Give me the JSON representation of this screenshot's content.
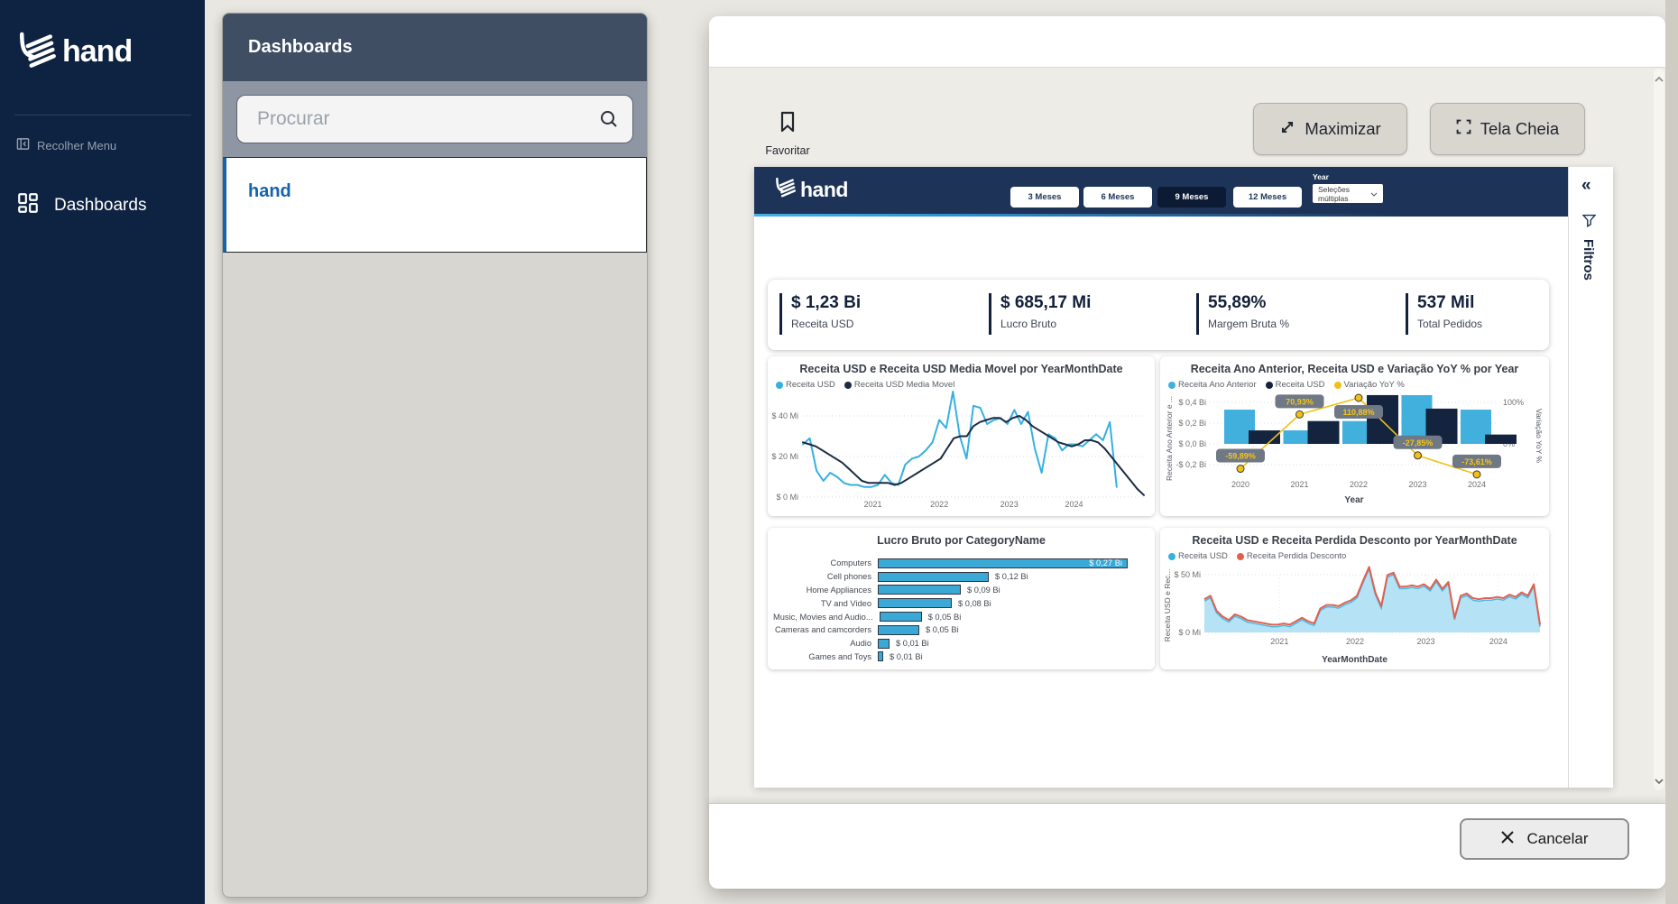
{
  "colors": {
    "sidebar_bg": "#0e2341",
    "panel_header": "#3f4e63",
    "search_zone": "#8d96a2",
    "accent_blue": "#1363ad",
    "report_navy": "#1d3458",
    "selected_period_bg": "#0c1a33",
    "kpi_navy": "#13203a",
    "series_light_blue": "#36b0e0",
    "series_dark": "#1b2a41",
    "series_cyan_bar": "#41b0dc",
    "series_yellow": "#f0c018",
    "series_red": "#e0604e",
    "hbar_blue": "#3aa9d6",
    "pill_gray": "#6f7885"
  },
  "sidebar": {
    "logo_text": "hand",
    "collapse_label": "Recolher Menu",
    "menu": [
      {
        "label": "Dashboards"
      }
    ]
  },
  "panel": {
    "title": "Dashboards",
    "search_placeholder": "Procurar",
    "items": [
      {
        "label": "hand"
      }
    ]
  },
  "toolbar": {
    "favorite_label": "Favoritar",
    "maximize_label": "Maximizar",
    "fullscreen_label": "Tela Cheia"
  },
  "footer": {
    "cancel_label": "Cancelar"
  },
  "report": {
    "logo_text": "hand",
    "period_buttons": [
      {
        "label": "3 Meses",
        "selected": false
      },
      {
        "label": "6 Meses",
        "selected": false
      },
      {
        "label": "9 Meses",
        "selected": true
      },
      {
        "label": "12 Meses",
        "selected": false
      }
    ],
    "year_filter": {
      "label": "Year",
      "value": "Seleções múltiplas"
    },
    "filters_pane": {
      "label": "Filtros",
      "collapse_glyph": "«"
    },
    "kpis": [
      {
        "value": "$ 1,23 Bi",
        "label": "Receita USD"
      },
      {
        "value": "$ 685,17 Mi",
        "label": "Lucro Bruto"
      },
      {
        "value": "55,89%",
        "label": "Margem Bruta %"
      },
      {
        "value": "537 Mil",
        "label": "Total Pedidos"
      }
    ]
  },
  "chart_data": [
    {
      "type": "line",
      "title": "Receita USD e Receita USD Media Movel por YearMonthDate",
      "legend": [
        {
          "label": "Receita USD",
          "color": "#36b0e0"
        },
        {
          "label": "Receita USD Media Movel",
          "color": "#1b2a41"
        }
      ],
      "unit": "Mi",
      "ylim": [
        0,
        55
      ],
      "y_ticks": [
        {
          "label": "$ 40 Mi",
          "value": 40
        },
        {
          "label": "$ 20 Mi",
          "value": 20
        },
        {
          "label": "$ 0 Mi",
          "value": 0
        }
      ],
      "x_ticks": [
        "2021",
        "2022",
        "2023",
        "2024"
      ],
      "x_tick_pos": [
        0.205,
        0.4,
        0.605,
        0.795
      ],
      "series": [
        {
          "name": "Receita USD",
          "color": "#36b0e0",
          "span": 0.92,
          "values": [
            26,
            29,
            13,
            8,
            12,
            10,
            7,
            6,
            6,
            5,
            5,
            6,
            11,
            7,
            6,
            16,
            19,
            20,
            23,
            27,
            38,
            34,
            52,
            30,
            19,
            45,
            44,
            36,
            38,
            39,
            36,
            43,
            36,
            42,
            24,
            12,
            31,
            29,
            23,
            26,
            26,
            25,
            28,
            31,
            28,
            37,
            5
          ]
        },
        {
          "name": "Receita USD Media Movel",
          "color": "#1b2a41",
          "span": 1.0,
          "values": [
            27,
            26,
            25,
            23,
            21,
            19,
            17,
            14,
            11,
            8,
            7,
            7,
            7,
            7,
            6,
            7,
            9,
            11,
            13,
            15,
            17,
            19,
            24,
            29,
            30,
            30,
            35,
            37,
            38,
            39,
            39,
            37,
            39,
            40,
            38,
            35,
            33,
            31,
            29,
            27,
            26,
            25,
            26,
            28,
            28,
            27,
            24,
            20,
            16,
            12,
            8,
            4,
            1
          ]
        }
      ]
    },
    {
      "type": "combo",
      "title": "Receita Ano Anterior, Receita USD e Variação YoY % por Year",
      "legend": [
        {
          "label": "Receita Ano Anterior",
          "color": "#41b0dc"
        },
        {
          "label": "Receita USD",
          "color": "#14243e"
        },
        {
          "label": "Variação YoY %",
          "color": "#f0c018"
        }
      ],
      "categories": [
        "2020",
        "2021",
        "2022",
        "2023",
        "2024"
      ],
      "xlabel": "Year",
      "ylabel_left": "Receita Ano Anterior e ...",
      "ylabel_right": "Variação YoY %",
      "y_ticks_left": [
        {
          "label": "$ 0,4 Bi",
          "value": 0.4
        },
        {
          "label": "$ 0,2 Bi",
          "value": 0.2
        },
        {
          "label": "$ 0,0 Bi",
          "value": 0.0
        },
        {
          "label": "-$ 0,2 Bi",
          "value": -0.2
        }
      ],
      "y_ticks_right": [
        {
          "label": "100%",
          "value": 100
        },
        {
          "label": "0%",
          "value": 0
        }
      ],
      "bar_series": [
        {
          "name": "Receita Ano Anterior",
          "color": "#41b0dc",
          "values_bi": [
            0.33,
            0.13,
            0.22,
            0.47,
            0.33
          ]
        },
        {
          "name": "Receita USD",
          "color": "#14243e",
          "values_bi": [
            0.13,
            0.22,
            0.47,
            0.34,
            0.09
          ]
        }
      ],
      "line_series": {
        "name": "Variação YoY %",
        "color": "#f0c018",
        "values_pct": [
          -59.89,
          70.93,
          110.88,
          -27.85,
          -73.61
        ],
        "labels": [
          "-59,89%",
          "70,93%",
          "110,88%",
          "-27,85%",
          "-73,61%"
        ],
        "label_below": [
          false,
          false,
          true,
          false,
          false
        ]
      }
    },
    {
      "type": "hbar",
      "title": "Lucro Bruto por CategoryName",
      "categories": [
        "Computers",
        "Cell phones",
        "Home Appliances",
        "TV and Video",
        "Music, Movies and Audio...",
        "Cameras and camcorders",
        "Audio",
        "Games and Toys"
      ],
      "values_bi": [
        0.27,
        0.12,
        0.09,
        0.08,
        0.046,
        0.045,
        0.013,
        0.006
      ],
      "value_labels": [
        "$ 0,27 Bi",
        "$ 0,12 Bi",
        "$ 0,09 Bi",
        "$ 0,08 Bi",
        "$ 0,05 Bi",
        "$ 0,05 Bi",
        "$ 0,01 Bi",
        "$ 0,01 Bi"
      ],
      "bar_color": "#3aa9d6"
    },
    {
      "type": "area",
      "title": "Receita USD e Receita Perdida Desconto por YearMonthDate",
      "legend": [
        {
          "label": "Receita USD",
          "color": "#36b0e0"
        },
        {
          "label": "Receita Perdida Desconto",
          "color": "#e0604e"
        }
      ],
      "xlabel": "YearMonthDate",
      "ylabel": "Receita USD e Rec...",
      "unit": "Mi",
      "ylim": [
        0,
        60
      ],
      "y_ticks": [
        {
          "label": "$ 50 Mi",
          "value": 50
        },
        {
          "label": "$ 0 Mi",
          "value": 0
        }
      ],
      "x_ticks": [
        "2021",
        "2022",
        "2023",
        "2024"
      ],
      "x_tick_pos": [
        0.224,
        0.449,
        0.66,
        0.876
      ],
      "series": [
        {
          "name": "Receita USD",
          "color": "#49b9e8",
          "fill": "#b5e2f4",
          "values": [
            27,
            30,
            17,
            12,
            9,
            14,
            12,
            9,
            8,
            7,
            6,
            5,
            5,
            6,
            5,
            8,
            11,
            8,
            6,
            19,
            22,
            22,
            21,
            24,
            26,
            30,
            43,
            55,
            33,
            21,
            48,
            50,
            38,
            38,
            39,
            38,
            40,
            36,
            44,
            36,
            42,
            11,
            30,
            32,
            28,
            27,
            28,
            28,
            29,
            28,
            31,
            29,
            33,
            30,
            40,
            5
          ]
        },
        {
          "name": "Receita Perdida Desconto",
          "color": "#e0604e",
          "offset": 2.2
        }
      ]
    }
  ]
}
